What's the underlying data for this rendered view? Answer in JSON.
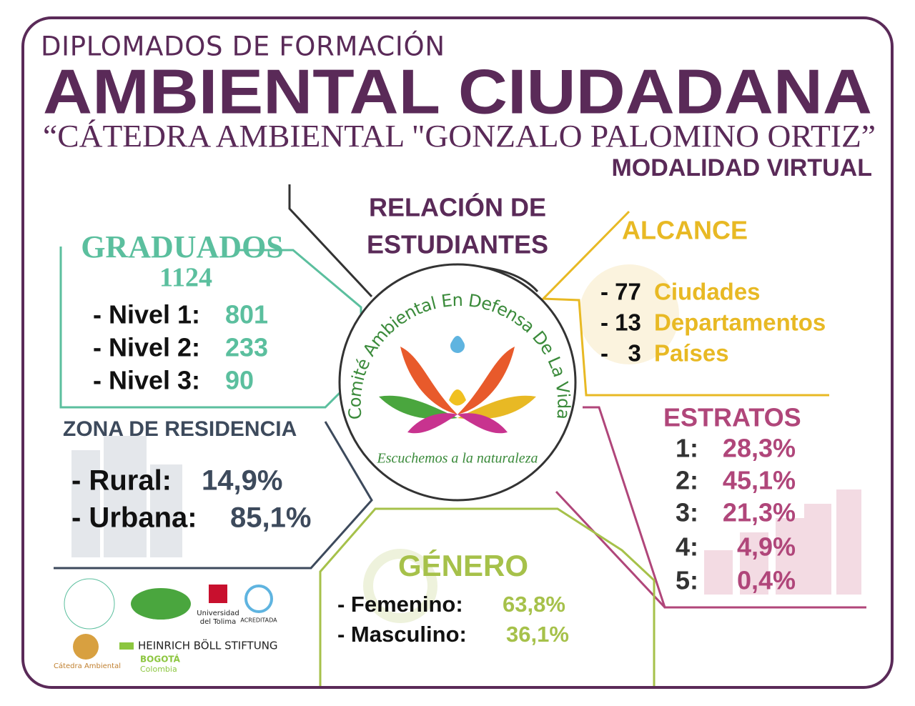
{
  "header": {
    "kicker": "DIPLOMADOS DE FORMACIÓN",
    "title": "AMBIENTAL CIUDADANA",
    "subtitle": "“CÁTEDRA AMBIENTAL \"GONZALO PALOMINO ORTIZ”",
    "mode": "MODALIDAD VIRTUAL"
  },
  "center": {
    "title": [
      "RELACIÓN DE",
      "ESTUDIANTES"
    ],
    "logo_ring": "Comité Ambiental En Defensa De La Vida",
    "logo_motto": "Escuchemos a la naturaleza"
  },
  "graduados": {
    "title": "GRADUADOS",
    "total": "1124",
    "items": [
      [
        "- Nivel 1:",
        "801"
      ],
      [
        "- Nivel 2:",
        "233"
      ],
      [
        "- Nivel 3:",
        "90"
      ]
    ]
  },
  "alcance": {
    "title": "ALCANCE",
    "items": [
      [
        "- 77",
        "Ciudades"
      ],
      [
        "- 13",
        "Departamentos"
      ],
      [
        "-   3",
        "Países"
      ]
    ]
  },
  "estratos": {
    "title": "ESTRATOS",
    "items": [
      [
        "1:",
        "28,3%"
      ],
      [
        "2:",
        "45,1%"
      ],
      [
        "3:",
        "21,3%"
      ],
      [
        "4:",
        "4,9%"
      ],
      [
        "5:",
        "0,4%"
      ]
    ]
  },
  "zona": {
    "title": "ZONA DE RESIDENCIA",
    "items": [
      [
        "- Rural:",
        "14,9%"
      ],
      [
        "- Urbana:",
        "85,1%"
      ]
    ]
  },
  "genero": {
    "title": "GÉNERO",
    "items": [
      [
        "- Femenino:",
        "63,8%"
      ],
      [
        "- Masculino:",
        "36,1%"
      ]
    ]
  },
  "logos": {
    "uni": [
      "Universidad",
      "del Tolima"
    ],
    "accred": "ACREDITADA",
    "catedra": "Cátedra Ambiental",
    "boll": "HEINRICH BÖLL STIFTUNG",
    "boll_city": "BOGOTÁ",
    "boll_country": "Colombia"
  }
}
